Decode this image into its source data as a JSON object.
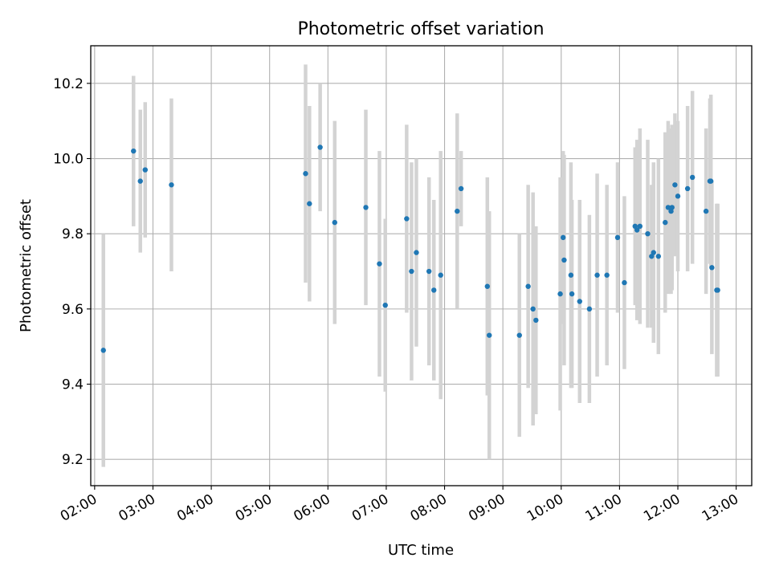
{
  "chart_data": {
    "type": "scatter",
    "title": "Photometric offset variation",
    "xlabel": "UTC time",
    "ylabel": "Photometric offset",
    "xlim": [
      "01:56",
      "13:16"
    ],
    "ylim": [
      9.13,
      10.3
    ],
    "x_ticks": [
      "02:00",
      "03:00",
      "04:00",
      "05:00",
      "06:00",
      "07:00",
      "08:00",
      "09:00",
      "10:00",
      "11:00",
      "12:00",
      "13:00"
    ],
    "y_ticks": [
      "9.2",
      "9.4",
      "9.6",
      "9.8",
      "10.0",
      "10.2"
    ],
    "grid": true,
    "legend": "none",
    "colors": {
      "points": "#1f77b4",
      "errorbars": "#d3d3d3",
      "grid": "#b0b0b0"
    },
    "series": [
      {
        "x": [
          "02:09",
          "02:40",
          "02:47",
          "02:52",
          "03:19",
          "05:37",
          "05:41",
          "05:52",
          "06:07",
          "06:39",
          "06:53",
          "06:59",
          "07:21",
          "07:26",
          "07:31",
          "07:44",
          "07:49",
          "07:56",
          "08:13",
          "08:17",
          "08:44",
          "08:46",
          "09:17",
          "09:26",
          "09:31",
          "09:34",
          "09:59",
          "10:02",
          "10:03",
          "10:10",
          "10:11",
          "10:19",
          "10:29",
          "10:37",
          "10:47",
          "10:58",
          "11:05",
          "11:16",
          "11:18",
          "11:21",
          "11:29",
          "11:33",
          "11:35",
          "11:40",
          "11:47",
          "11:50",
          "11:53",
          "11:54",
          "11:57",
          "12:00",
          "12:10",
          "12:15",
          "12:29",
          "12:33",
          "12:34",
          "12:35",
          "12:40",
          "12:41"
        ],
        "y": [
          9.49,
          10.02,
          9.94,
          9.97,
          9.93,
          9.96,
          9.88,
          10.03,
          9.83,
          9.87,
          9.72,
          9.61,
          9.84,
          9.7,
          9.75,
          9.7,
          9.65,
          9.69,
          9.86,
          9.92,
          9.66,
          9.53,
          9.53,
          9.66,
          9.6,
          9.57,
          9.64,
          9.79,
          9.73,
          9.69,
          9.64,
          9.62,
          9.6,
          9.69,
          9.69,
          9.79,
          9.67,
          9.82,
          9.81,
          9.82,
          9.8,
          9.74,
          9.75,
          9.74,
          9.83,
          9.87,
          9.86,
          9.87,
          9.93,
          9.9,
          9.92,
          9.95,
          9.86,
          9.94,
          9.94,
          9.71,
          9.65,
          9.65
        ],
        "yerr": [
          0.31,
          0.2,
          0.19,
          0.18,
          0.23,
          0.29,
          0.26,
          0.17,
          0.27,
          0.26,
          0.3,
          0.23,
          0.25,
          0.29,
          0.25,
          0.25,
          0.24,
          0.33,
          0.26,
          0.1,
          0.29,
          0.33,
          0.27,
          0.27,
          0.31,
          0.25,
          0.31,
          0.23,
          0.28,
          0.3,
          0.25,
          0.27,
          0.25,
          0.27,
          0.24,
          0.2,
          0.23,
          0.21,
          0.24,
          0.26,
          0.25,
          0.19,
          0.24,
          0.26,
          0.24,
          0.23,
          0.22,
          0.22,
          0.19,
          0.2,
          0.22,
          0.23,
          0.22,
          0.22,
          0.23,
          0.23,
          0.23,
          0.23
        ]
      }
    ]
  }
}
